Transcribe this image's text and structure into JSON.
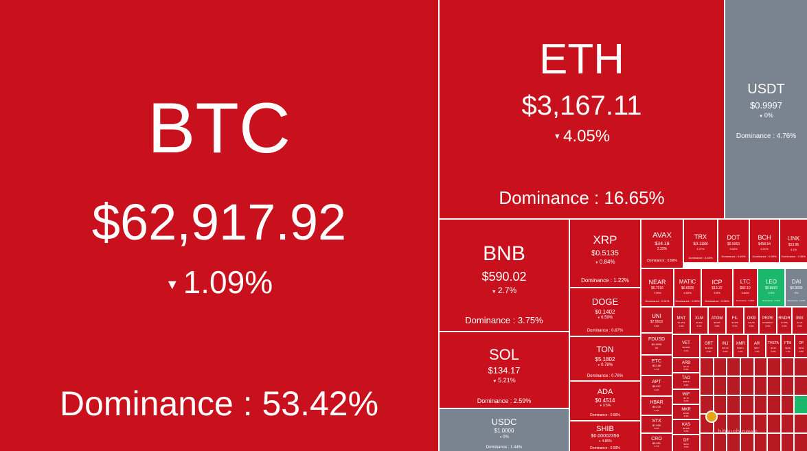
{
  "big": {
    "btc": {
      "symbol": "BTC",
      "price": "$62,917.92",
      "change": "1.09%",
      "dominance": "Dominance : 53.42%"
    },
    "eth": {
      "symbol": "ETH",
      "price": "$3,167.11",
      "change": "4.05%",
      "dominance": "Dominance : 16.65%"
    },
    "usdt": {
      "symbol": "USDT",
      "price": "$0.9997",
      "change": "0%",
      "dominance": "Dominance : 4.76%"
    },
    "bnb": {
      "symbol": "BNB",
      "price": "$590.02",
      "change": "2.7%",
      "dominance": "Dominance : 3.75%"
    },
    "sol": {
      "symbol": "SOL",
      "price": "$134.17",
      "change": "5.21%",
      "dominance": "Dominance : 2.59%"
    },
    "usdc": {
      "symbol": "USDC",
      "price": "$1.0000",
      "change": "0%",
      "dominance": "Dominance : 1.44%"
    },
    "xrp": {
      "symbol": "XRP",
      "price": "$0.5135",
      "change": "0.84%",
      "dominance": "Dominance : 1.22%"
    },
    "doge": {
      "symbol": "DOGE",
      "price": "$0.1402",
      "change": "6.59%",
      "dominance": "Dominance : 0.87%"
    },
    "ton": {
      "symbol": "TON",
      "price": "$5.1802",
      "change": "0.78%",
      "dominance": "Dominance : 0.76%"
    },
    "ada": {
      "symbol": "ADA",
      "price": "$0.4514",
      "change": "3.5%",
      "dominance": "Dominance : 0.66%"
    },
    "shib": {
      "symbol": "SHIB",
      "price": "$0.00002356",
      "change": "4.86%",
      "dominance": "Dominance : 0.59%"
    }
  },
  "mid": {
    "avax": {
      "symbol": "AVAX",
      "price": "$34.18",
      "change": "2.22%",
      "dominance": "Dominance : 0.56%"
    },
    "trx": {
      "symbol": "TRX",
      "price": "$0.1188",
      "change": "1.07%",
      "dominance": "Dominance : 0.45%"
    },
    "dot": {
      "symbol": "DOT",
      "price": "$6.5063",
      "change": "3.02%",
      "dominance": "Dominance : 0.40%"
    },
    "bch": {
      "symbol": "BCH",
      "price": "$458.54",
      "change": "4.01%",
      "dominance": "Dominance : 0.39%"
    },
    "link": {
      "symbol": "LINK",
      "price": "$13.95",
      "change": "4.1%",
      "dominance": "Dominance : 0.35%"
    },
    "near": {
      "symbol": "NEAR",
      "price": "$6.7016",
      "change": "7.09%",
      "dominance": "Dominance : 0.31%"
    },
    "matic": {
      "symbol": "MATIC",
      "price": "$0.6928",
      "change": "4.53%",
      "dominance": "Dominance : 0.30%"
    },
    "icp": {
      "symbol": "ICP",
      "price": "$13.22",
      "change": "5.5%",
      "dominance": "Dominance : 0.26%"
    },
    "ltc": {
      "symbol": "LTC",
      "price": "$82.10",
      "change": "3.84%",
      "dominance": "Dominance : 0.26%"
    },
    "leo": {
      "symbol": "LEO",
      "price": "$5.8093",
      "change": "0.5%",
      "dominance": "Dominance : 0.24%"
    },
    "dai": {
      "symbol": "DAI",
      "price": "$0.9999",
      "change": "0%",
      "dominance": "Dominance : 0.23%"
    }
  },
  "small": {
    "uni": {
      "symbol": "UNI",
      "price": "$7.5513",
      "change": "5.9%"
    },
    "mnt": {
      "symbol": "MNT",
      "price": "$1.0221",
      "change": "2.4%"
    },
    "xlm": {
      "symbol": "XLM",
      "price": "$0.104",
      "change": "3.1%"
    },
    "atom": {
      "symbol": "ATOM",
      "price": "$6.605",
      "change": "4.8%"
    },
    "fil": {
      "symbol": "FIL",
      "price": "$4.968",
      "change": "5.7%"
    },
    "okb": {
      "symbol": "OKB",
      "price": "$44.08",
      "change": "2.9%"
    },
    "pepe": {
      "symbol": "PEPE",
      "price": "$0.0000117",
      "change": "8.2%"
    },
    "rndr": {
      "symbol": "RNDR",
      "price": "$7.055",
      "change": "6.3%"
    },
    "imx": {
      "symbol": "IMX",
      "price": "$1.49",
      "change": "6.9%"
    },
    "fdusd": {
      "symbol": "FDUSD",
      "price": "$0.9995",
      "change": "0%"
    },
    "etc": {
      "symbol": "ETC",
      "price": "$22.88",
      "change": "3.7%"
    },
    "apt": {
      "symbol": "APT",
      "price": "$6.637",
      "change": "4.4%"
    },
    "hbar": {
      "symbol": "HBAR",
      "price": "$0.076",
      "change": "3.4%"
    },
    "stx": {
      "symbol": "STX",
      "price": "$1.609",
      "change": "6.1%"
    },
    "cro": {
      "symbol": "CRO",
      "price": "$0.091",
      "change": "2.7%"
    },
    "vet": {
      "symbol": "VET",
      "price": "$0.0254",
      "change": "4.2%"
    },
    "grt": {
      "symbol": "GRT",
      "price": "$0.2145",
      "change": "6.4%"
    },
    "inj": {
      "symbol": "INJ",
      "price": "$21.02",
      "change": "6.6%"
    },
    "xmr": {
      "symbol": "XMR",
      "price": "$166.3",
      "change": "1.2%"
    },
    "ar": {
      "symbol": "AR",
      "price": "$25.7",
      "change": "7.4%"
    },
    "theta": {
      "symbol": "THETA",
      "price": "$1.33",
      "change": "5.0%"
    },
    "ftm": {
      "symbol": "FTM",
      "price": "$0.49",
      "change": "7.7%"
    },
    "op": {
      "symbol": "OP",
      "price": "$1.62",
      "change": "6.8%"
    },
    "arb": {
      "symbol": "ARB",
      "price": "$0.72",
      "change": "5.3%"
    },
    "tao": {
      "symbol": "TAO",
      "price": "$295.5",
      "change": "4.9%"
    },
    "wif": {
      "symbol": "WIF",
      "price": "$1.76",
      "change": "9.1%"
    },
    "mkr": {
      "symbol": "MKR",
      "price": "$2300",
      "change": "3.3%"
    },
    "kas": {
      "symbol": "KAS",
      "price": "$0.148",
      "change": "2.2%"
    },
    "df": {
      "symbol": "DF",
      "price": "$0.04",
      "change": "1.5%"
    }
  },
  "watermark": "bitpush.news"
}
